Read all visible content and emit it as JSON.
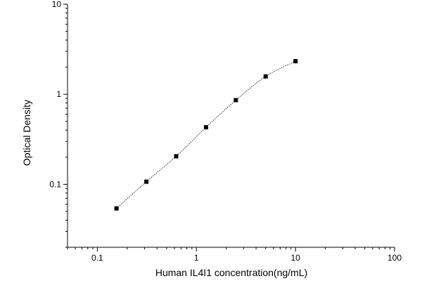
{
  "chart_data": {
    "type": "scatter",
    "title": "",
    "xlabel": "Human IL4I1 concentration(ng/mL)",
    "ylabel": "Optical Density",
    "xscale": "log",
    "yscale": "log",
    "xlim": [
      0.05,
      100
    ],
    "ylim": [
      0.02,
      10
    ],
    "x_ticks": [
      0.1,
      1,
      10,
      100
    ],
    "x_tick_labels": [
      "0.1",
      "1",
      "10",
      "100"
    ],
    "y_ticks": [
      0.1,
      1,
      10
    ],
    "y_tick_labels": [
      "0.1",
      "1",
      "10"
    ],
    "grid": false,
    "legend": "none",
    "series": [
      {
        "marker": "square",
        "color": "#000000",
        "x": [
          0.156,
          0.3125,
          0.625,
          1.25,
          2.5,
          5,
          10
        ],
        "y": [
          0.054,
          0.107,
          0.205,
          0.43,
          0.86,
          1.58,
          2.33
        ]
      }
    ],
    "fit_curve": {
      "style": "dotted",
      "color": "#000000"
    }
  }
}
